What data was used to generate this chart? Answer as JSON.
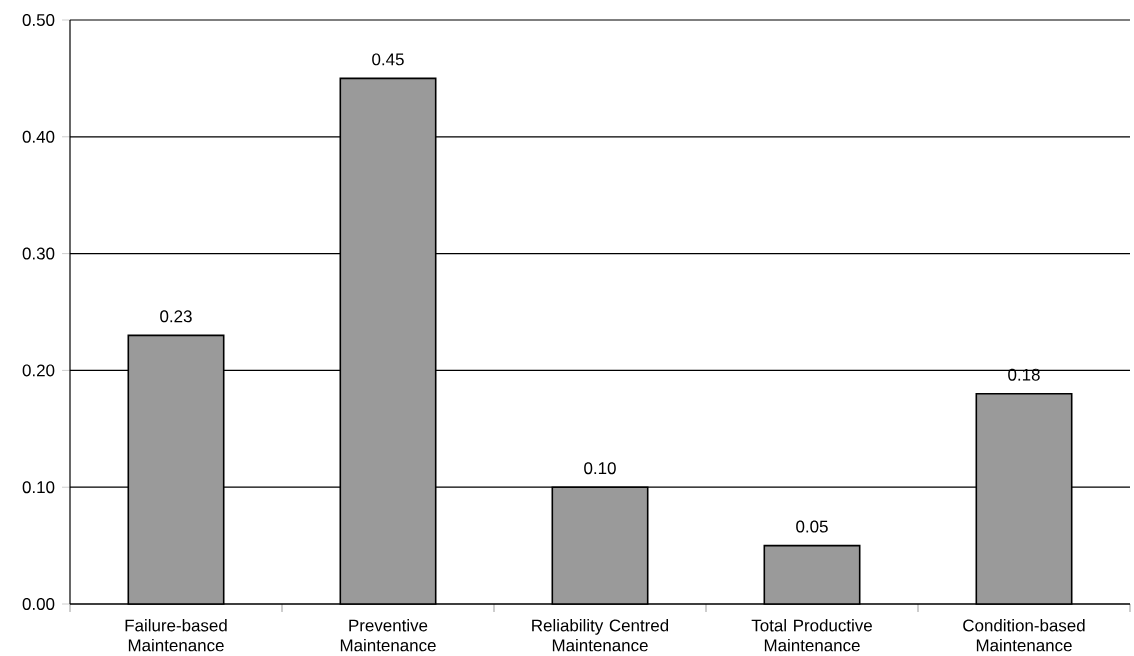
{
  "chart_data": {
    "type": "bar",
    "categories": [
      "Failure-based Maintenance",
      "Preventive Maintenance",
      "Reliability Centred Maintenance",
      "Total Productive Maintenance",
      "Condition-based Maintenance"
    ],
    "values": [
      0.23,
      0.45,
      0.1,
      0.05,
      0.18
    ],
    "value_labels": [
      "0.23",
      "0.45",
      "0.10",
      "0.05",
      "0.18"
    ],
    "color": "#9a9a9a",
    "ylim": [
      0,
      0.5
    ],
    "yticks": [
      {
        "value": 0,
        "label": "0.00"
      },
      {
        "value": 0.1,
        "label": "0.10"
      },
      {
        "value": 0.2,
        "label": "0.20"
      },
      {
        "value": 0.3,
        "label": "0.30"
      },
      {
        "value": 0.4,
        "label": "0.40"
      },
      {
        "value": 0.5,
        "label": "0.50"
      }
    ],
    "grid": "y"
  }
}
